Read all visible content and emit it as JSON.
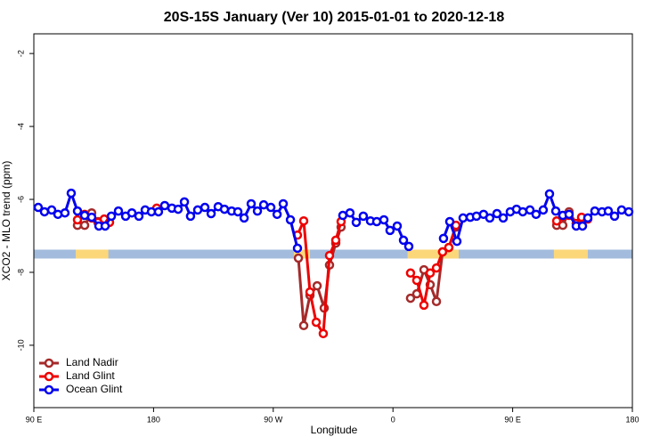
{
  "chart_data": {
    "type": "line",
    "title": "20S-15S January (Ver 10)   2015-01-01 to 2020-12-18",
    "x_label": "Longitude",
    "y_label": "XCO2 - MLO trend (ppm)",
    "xlim": [
      90,
      540
    ],
    "ylim": [
      -11.71,
      -1.46
    ],
    "xticks": [
      {
        "value": 90,
        "label": "90 E"
      },
      180,
      {
        "value": 270,
        "label": "90 W"
      },
      {
        "value": 360,
        "label": "0"
      },
      {
        "value": 450,
        "label": "90 E"
      },
      {
        "value": 540,
        "label": "180"
      }
    ],
    "yticks": [
      -2,
      -4,
      -6,
      -8,
      -10
    ],
    "legend": "bottom-left",
    "band": {
      "value": -7.5,
      "color": "#a3bcdd",
      "land_color": "#fbd77a",
      "land_ranges": [
        [
          121.5,
          146
        ],
        [
          285.5,
          297.6
        ],
        [
          371,
          409.4
        ],
        [
          481,
          506.5
        ]
      ]
    },
    "series": [
      {
        "name": "Land Nadir",
        "color": "#a52a2a",
        "x": [
          122.8,
          128.2,
          133.5,
          138.2,
          142.9,
          null,
          288.9,
          292.9,
          297.6,
          303.0,
          308.3,
          312.3,
          317.0,
          321.0,
          null,
          373.2,
          377.9,
          383.3,
          388.0,
          392.7,
          397.3,
          402.0,
          407.4,
          null,
          483.1,
          487.7,
          492.4,
          497.8,
          501.8
        ],
        "values": [
          -6.71,
          -6.71,
          -6.37,
          -6.61,
          -6.66,
          null,
          -7.61,
          -9.46,
          -8.63,
          -8.37,
          -8.98,
          -7.8,
          -7.2,
          -6.76,
          null,
          -8.71,
          -8.59,
          -7.93,
          -8.34,
          -8.8,
          -7.44,
          -7.32,
          -6.76,
          null,
          -6.71,
          -6.71,
          -6.34,
          -6.66,
          -6.71
        ]
      },
      {
        "name": "Land Glint",
        "color": "#ee0000",
        "x": [
          122.8,
          128.2,
          133.5,
          138.2,
          142.9,
          146.9,
          null,
          182.4,
          null,
          288.2,
          292.9,
          297.6,
          302.3,
          307.6,
          312.3,
          317.0,
          321.0,
          null,
          373.2,
          377.9,
          383.3,
          388.0,
          392.7,
          397.3,
          402.0,
          407.4,
          null,
          483.1,
          487.7,
          492.4,
          497.8,
          501.8,
          506.5
        ],
        "values": [
          -6.56,
          -6.41,
          -6.51,
          -6.63,
          -6.54,
          -6.63,
          null,
          -6.24,
          null,
          -6.98,
          -6.59,
          -8.54,
          -9.37,
          -9.68,
          -7.54,
          -7.12,
          -6.61,
          null,
          -8.02,
          -8.22,
          -8.9,
          -8.02,
          -7.88,
          -7.44,
          -7.32,
          -6.71,
          null,
          -6.59,
          -6.46,
          -6.44,
          -6.66,
          -6.49,
          -6.54
        ]
      },
      {
        "name": "Ocean Glint",
        "color": "#0000ee",
        "x": [
          93.3,
          98.0,
          103.4,
          108.1,
          113.4,
          118.1,
          122.8,
          128.2,
          133.5,
          138.9,
          143.6,
          148.3,
          153.6,
          159.0,
          163.7,
          169.0,
          173.7,
          178.4,
          183.7,
          188.4,
          193.8,
          198.5,
          203.2,
          207.8,
          213.2,
          218.6,
          223.3,
          228.6,
          233.3,
          238.7,
          243.4,
          248.1,
          253.4,
          258.1,
          262.8,
          268.2,
          272.9,
          277.5,
          282.9,
          288.2,
          null,
          322.3,
          327.7,
          332.4,
          337.7,
          343.1,
          347.8,
          353.2,
          357.8,
          363.2,
          367.9,
          371.9,
          null,
          398.0,
          402.7,
          408.1,
          412.7,
          418.1,
          422.8,
          428.1,
          432.8,
          438.2,
          442.9,
          448.2,
          452.9,
          457.6,
          463.0,
          467.6,
          473.0,
          477.7,
          482.4,
          487.7,
          492.4,
          497.8,
          502.5,
          506.5,
          511.8,
          517.2,
          521.9,
          526.6,
          531.9,
          537.3
        ],
        "values": [
          -6.22,
          -6.34,
          -6.29,
          -6.41,
          -6.37,
          -5.83,
          -6.32,
          -6.44,
          -6.49,
          -6.73,
          -6.73,
          -6.46,
          -6.32,
          -6.46,
          -6.37,
          -6.46,
          -6.29,
          -6.34,
          -6.34,
          -6.17,
          -6.24,
          -6.27,
          -6.07,
          -6.46,
          -6.29,
          -6.22,
          -6.39,
          -6.2,
          -6.27,
          -6.32,
          -6.34,
          -6.51,
          -6.12,
          -6.32,
          -6.15,
          -6.22,
          -6.41,
          -6.12,
          -6.56,
          -7.34,
          null,
          -6.44,
          -6.37,
          -6.63,
          -6.46,
          -6.59,
          -6.61,
          -6.56,
          -6.85,
          -6.73,
          -7.12,
          -7.29,
          null,
          -7.07,
          -6.61,
          -7.15,
          -6.51,
          -6.49,
          -6.46,
          -6.41,
          -6.51,
          -6.39,
          -6.51,
          -6.34,
          -6.27,
          -6.34,
          -6.29,
          -6.41,
          -6.29,
          -5.85,
          -6.32,
          -6.44,
          -6.41,
          -6.73,
          -6.73,
          -6.51,
          -6.32,
          -6.34,
          -6.32,
          -6.46,
          -6.29,
          -6.34
        ]
      }
    ]
  }
}
